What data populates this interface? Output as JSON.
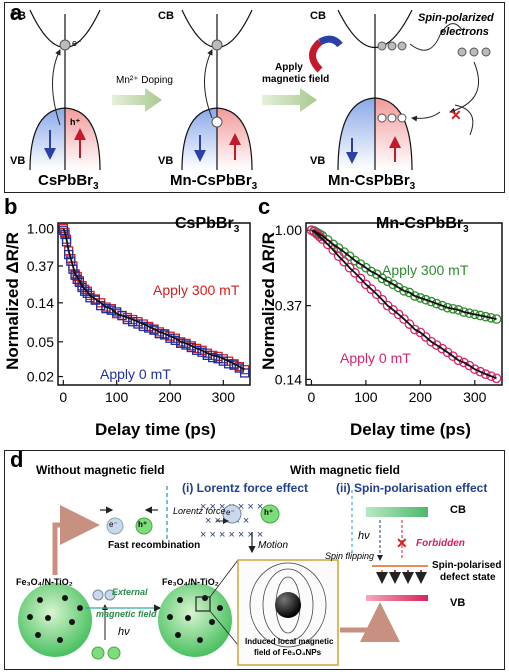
{
  "panel_a": {
    "label": "a",
    "cb": "CB",
    "vb": "VB",
    "name1": "CsPbBr",
    "name2": "Mn-CsPbBr",
    "name3": "Mn-CsPbBr",
    "sub": "3",
    "arrow1": "Mn²⁺ Doping",
    "arrow2_l1": "Apply",
    "arrow2_l2": "magnetic field",
    "spin_l1": "Spin-polarized",
    "spin_l2": "electrons",
    "e_sym": "e⁻",
    "h_sym": "h⁺"
  },
  "panel_b": {
    "label": "b",
    "title": "CsPbBr",
    "title_sub": "3",
    "ylabel": "Normalized ΔR/R",
    "xlabel": "Delay time (ps)",
    "yticks": [
      "1.00",
      "0.37",
      "0.14",
      "0.05",
      "0.02"
    ],
    "xticks": [
      "0",
      "100",
      "200",
      "300"
    ],
    "ann_red": "Apply 300 mT",
    "ann_blue": "Apply 0 mT"
  },
  "panel_c": {
    "label": "c",
    "title": "Mn-CsPbBr",
    "title_sub": "3",
    "ylabel": "Normalized ΔR/R",
    "xlabel": "Delay time (ps)",
    "yticks": [
      "1.00",
      "0.37",
      "0.14"
    ],
    "xticks": [
      "0",
      "100",
      "200",
      "300"
    ],
    "ann_green": "Apply 300 mT",
    "ann_pink": "Apply 0 mT"
  },
  "panel_d": {
    "label": "d",
    "without": "Without magnetic field",
    "with": "With magnetic field",
    "lorentz_title": "(i) Lorentz force effect",
    "spin_title": "(ii) Spin-polarisation effect",
    "lorentz_force": "Lorentz force",
    "motion": "Motion",
    "fast_recomb": "Fast recombination",
    "sample": "Fe₃O₄/N-TiO₂",
    "external_l1": "External",
    "external_l2": "magnetic field",
    "hv": "hν",
    "induced_l1": "Induced local magnetic",
    "induced_l2": "field of Fe₃O₄NPs",
    "cb": "CB",
    "vb": "VB",
    "forbidden": "Forbidden",
    "spin_flipping": "Spin flipping",
    "defect_l1": "Spin-polarised",
    "defect_l2": "defect state",
    "e_sym": "e⁻",
    "h_sym": "h⁺"
  },
  "colors": {
    "red_series": "#d42020",
    "blue_series": "#1f2fa0",
    "green_series": "#2e8b2e",
    "pink_series": "#d6246e",
    "fit_line": "#111111"
  },
  "chart_data": [
    {
      "type": "scatter",
      "title": "CsPbBr3",
      "xlabel": "Delay time (ps)",
      "ylabel": "Normalized ΔR/R",
      "yscale": "log",
      "xlim": [
        -10,
        350
      ],
      "ylim": [
        0.016,
        1.15
      ],
      "series": [
        {
          "name": "Apply 300 mT",
          "x": [
            0,
            3,
            6,
            10,
            14,
            18,
            22,
            26,
            30,
            35,
            40,
            45,
            50,
            60,
            70,
            80,
            90,
            100,
            110,
            120,
            130,
            140,
            150,
            160,
            170,
            180,
            190,
            200,
            210,
            220,
            230,
            240,
            250,
            260,
            270,
            280,
            290,
            300,
            310,
            320,
            330,
            340
          ],
          "y": [
            1.0,
            0.9,
            0.75,
            0.55,
            0.45,
            0.37,
            0.3,
            0.28,
            0.25,
            0.22,
            0.2,
            0.19,
            0.17,
            0.155,
            0.14,
            0.125,
            0.12,
            0.105,
            0.1,
            0.095,
            0.09,
            0.085,
            0.08,
            0.075,
            0.07,
            0.065,
            0.062,
            0.058,
            0.055,
            0.05,
            0.048,
            0.045,
            0.042,
            0.04,
            0.037,
            0.035,
            0.034,
            0.032,
            0.03,
            0.028,
            0.026,
            0.024
          ]
        },
        {
          "name": "Apply 0 mT",
          "x": [
            0,
            3,
            6,
            10,
            14,
            18,
            22,
            26,
            30,
            35,
            40,
            45,
            50,
            60,
            70,
            80,
            90,
            100,
            110,
            120,
            130,
            140,
            150,
            160,
            170,
            180,
            190,
            200,
            210,
            220,
            230,
            240,
            250,
            260,
            270,
            280,
            290,
            300,
            310,
            320,
            330,
            340
          ],
          "y": [
            0.95,
            0.85,
            0.7,
            0.5,
            0.42,
            0.34,
            0.29,
            0.26,
            0.24,
            0.21,
            0.19,
            0.18,
            0.16,
            0.15,
            0.13,
            0.12,
            0.115,
            0.11,
            0.1,
            0.09,
            0.085,
            0.08,
            0.075,
            0.072,
            0.068,
            0.062,
            0.06,
            0.055,
            0.052,
            0.048,
            0.046,
            0.043,
            0.04,
            0.038,
            0.035,
            0.033,
            0.032,
            0.03,
            0.028,
            0.027,
            0.025,
            0.022
          ]
        }
      ]
    },
    {
      "type": "scatter",
      "title": "Mn-CsPbBr3",
      "xlabel": "Delay time (ps)",
      "ylabel": "Normalized ΔR/R",
      "yscale": "log",
      "xlim": [
        -10,
        350
      ],
      "ylim": [
        0.13,
        1.1
      ],
      "series": [
        {
          "name": "Apply 300 mT",
          "x": [
            0,
            5,
            10,
            15,
            20,
            30,
            40,
            50,
            60,
            70,
            80,
            90,
            100,
            110,
            120,
            130,
            140,
            150,
            160,
            170,
            180,
            190,
            200,
            210,
            220,
            230,
            240,
            250,
            260,
            270,
            280,
            290,
            300,
            310,
            320,
            330,
            340
          ],
          "y": [
            1.0,
            0.99,
            0.97,
            0.95,
            0.93,
            0.88,
            0.83,
            0.79,
            0.75,
            0.71,
            0.67,
            0.64,
            0.61,
            0.58,
            0.56,
            0.53,
            0.51,
            0.49,
            0.47,
            0.45,
            0.44,
            0.42,
            0.41,
            0.4,
            0.39,
            0.38,
            0.37,
            0.36,
            0.355,
            0.35,
            0.34,
            0.335,
            0.33,
            0.325,
            0.32,
            0.315,
            0.31
          ]
        },
        {
          "name": "Apply 0 mT",
          "x": [
            0,
            5,
            10,
            15,
            20,
            30,
            40,
            50,
            60,
            70,
            80,
            90,
            100,
            110,
            120,
            130,
            140,
            150,
            160,
            170,
            180,
            190,
            200,
            210,
            220,
            230,
            240,
            250,
            260,
            270,
            280,
            290,
            300,
            310,
            320,
            330,
            340
          ],
          "y": [
            1.0,
            0.98,
            0.95,
            0.92,
            0.89,
            0.83,
            0.77,
            0.71,
            0.66,
            0.61,
            0.57,
            0.53,
            0.49,
            0.46,
            0.43,
            0.4,
            0.37,
            0.35,
            0.33,
            0.31,
            0.29,
            0.27,
            0.26,
            0.245,
            0.23,
            0.22,
            0.21,
            0.2,
            0.19,
            0.18,
            0.175,
            0.168,
            0.16,
            0.155,
            0.15,
            0.146,
            0.142
          ]
        }
      ]
    }
  ]
}
